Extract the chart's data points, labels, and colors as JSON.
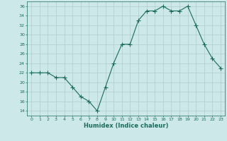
{
  "x": [
    0,
    1,
    2,
    3,
    4,
    5,
    6,
    7,
    8,
    9,
    10,
    11,
    12,
    13,
    14,
    15,
    16,
    17,
    18,
    19,
    20,
    21,
    22,
    23
  ],
  "y": [
    22,
    22,
    22,
    21,
    21,
    19,
    17,
    16,
    14,
    19,
    24,
    28,
    28,
    33,
    35,
    35,
    36,
    35,
    35,
    36,
    32,
    28,
    25,
    23
  ],
  "xlabel": "Humidex (Indice chaleur)",
  "ylim": [
    13,
    37
  ],
  "yticks": [
    14,
    16,
    18,
    20,
    22,
    24,
    26,
    28,
    30,
    32,
    34,
    36
  ],
  "xticks": [
    0,
    1,
    2,
    3,
    4,
    5,
    6,
    7,
    8,
    9,
    10,
    11,
    12,
    13,
    14,
    15,
    16,
    17,
    18,
    19,
    20,
    21,
    22,
    23
  ],
  "line_color": "#1a6b5e",
  "marker": "+",
  "bg_color": "#cce8e8",
  "grid_color": "#b0cccc",
  "axis_label_color": "#1a6b5e",
  "tick_color": "#1a6b5e"
}
